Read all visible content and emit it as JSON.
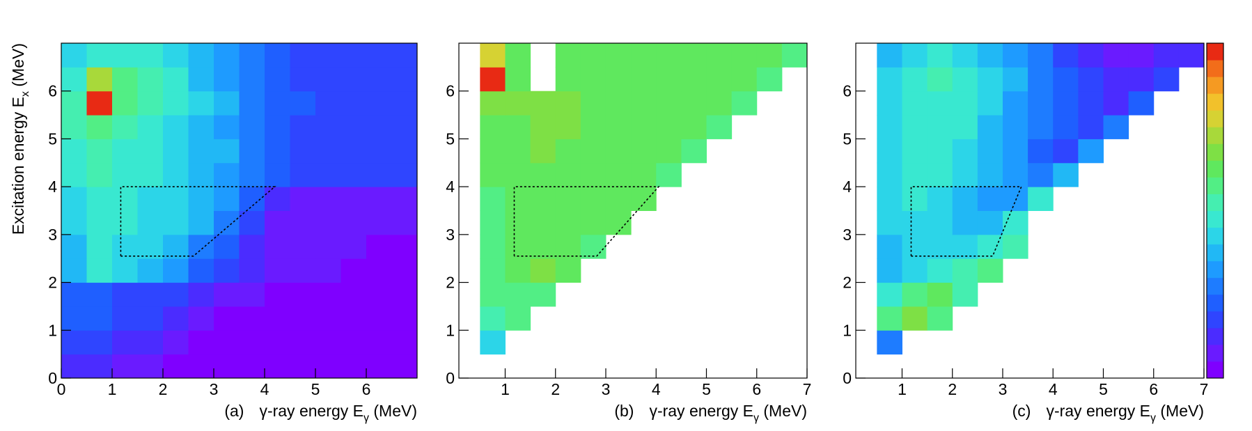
{
  "chart_data": [
    {
      "type": "heatmap",
      "panel_tag": "(a)",
      "xlabel": {
        "text": "γ-ray energy E",
        "sub": "γ",
        "after": " (MeV)"
      },
      "ylabel": {
        "text": "Excitation energy E",
        "sub": "x",
        "after": " (MeV)"
      },
      "xlim": [
        0,
        7
      ],
      "ylim": [
        0,
        7
      ],
      "xticks": [
        0,
        1,
        2,
        3,
        4,
        5,
        6
      ],
      "yticks": [
        0,
        1,
        2,
        3,
        4,
        5,
        6
      ],
      "xbins": [
        0,
        0.5,
        1,
        1.5,
        2,
        2.5,
        3,
        3.5,
        4,
        4.5,
        5,
        5.5,
        6,
        6.5,
        7
      ],
      "ybins": [
        0,
        0.5,
        1,
        1.5,
        2,
        2.5,
        3,
        3.5,
        4,
        4.5,
        5,
        5.5,
        6,
        6.5,
        7
      ],
      "z": [
        [
          3,
          3,
          2,
          2,
          1,
          1,
          1,
          1,
          1,
          1,
          1,
          1,
          1,
          1
        ],
        [
          4,
          4,
          3,
          3,
          2,
          1,
          1,
          1,
          1,
          1,
          1,
          1,
          1,
          1
        ],
        [
          5,
          5,
          4,
          4,
          3,
          2,
          1,
          1,
          1,
          1,
          1,
          1,
          1,
          1
        ],
        [
          5,
          5,
          4,
          4,
          4,
          3,
          2,
          2,
          1,
          1,
          1,
          1,
          1,
          1
        ],
        [
          8,
          10,
          9,
          8,
          7,
          5,
          4,
          3,
          2,
          2,
          2,
          1,
          1,
          1
        ],
        [
          8,
          10,
          9,
          9,
          8,
          6,
          5,
          3,
          2,
          2,
          2,
          2,
          1,
          1
        ],
        [
          9,
          10,
          10,
          9,
          9,
          8,
          6,
          4,
          2,
          2,
          2,
          2,
          2,
          2
        ],
        [
          9,
          10,
          10,
          9,
          9,
          8,
          7,
          5,
          3,
          2,
          2,
          2,
          2,
          2
        ],
        [
          10,
          11,
          10,
          10,
          9,
          8,
          7,
          6,
          5,
          4,
          4,
          4,
          4,
          4
        ],
        [
          10,
          11,
          10,
          10,
          9,
          8,
          8,
          6,
          5,
          4,
          4,
          4,
          4,
          4
        ],
        [
          11,
          12,
          11,
          10,
          9,
          8,
          7,
          6,
          5,
          4,
          4,
          4,
          4,
          4
        ],
        [
          11,
          20,
          12,
          11,
          10,
          9,
          8,
          6,
          5,
          5,
          4,
          4,
          4,
          4
        ],
        [
          10,
          15,
          12,
          11,
          10,
          8,
          7,
          6,
          5,
          4,
          4,
          4,
          4,
          4
        ],
        [
          9,
          10,
          10,
          10,
          9,
          8,
          7,
          6,
          5,
          4,
          4,
          4,
          4,
          4
        ]
      ],
      "gate": {
        "x": [
          1.17,
          1.17,
          4.2,
          2.6,
          1.17
        ],
        "y": [
          2.55,
          4,
          4,
          2.55,
          2.55
        ]
      }
    },
    {
      "type": "heatmap",
      "panel_tag": "(b)",
      "xlabel": {
        "text": "γ-ray energy E",
        "sub": "γ",
        "after": " (MeV)"
      },
      "xlim": [
        0.08,
        7
      ],
      "ylim": [
        0,
        7
      ],
      "xticks": [
        1,
        2,
        3,
        4,
        5,
        6,
        7
      ],
      "yticks": [
        0,
        1,
        2,
        3,
        4,
        5,
        6
      ],
      "xbins": [
        0,
        0.5,
        1,
        1.5,
        2,
        2.5,
        3,
        3.5,
        4,
        4.5,
        5,
        5.5,
        6,
        6.5,
        7
      ],
      "ybins": [
        0,
        0.5,
        1,
        1.5,
        2,
        2.5,
        3,
        3.5,
        4,
        4.5,
        5,
        5.5,
        6,
        6.5,
        7
      ],
      "z": [
        [
          null,
          null,
          null,
          null,
          null,
          null,
          null,
          null,
          null,
          null,
          null,
          null,
          null,
          null
        ],
        [
          null,
          9,
          null,
          null,
          null,
          null,
          null,
          null,
          null,
          null,
          null,
          null,
          null,
          null
        ],
        [
          null,
          11,
          12,
          null,
          null,
          null,
          null,
          null,
          null,
          null,
          null,
          null,
          null,
          null
        ],
        [
          null,
          12,
          12,
          12,
          null,
          null,
          null,
          null,
          null,
          null,
          null,
          null,
          null,
          null
        ],
        [
          null,
          12,
          13,
          14,
          13,
          null,
          null,
          null,
          null,
          null,
          null,
          null,
          null,
          null
        ],
        [
          null,
          12,
          13,
          13,
          13,
          12,
          null,
          null,
          null,
          null,
          null,
          null,
          null,
          null
        ],
        [
          null,
          12,
          13,
          13,
          13,
          13,
          13,
          null,
          null,
          null,
          null,
          null,
          null,
          null
        ],
        [
          null,
          12,
          13,
          13,
          13,
          13,
          13,
          13,
          null,
          null,
          null,
          null,
          null,
          null
        ],
        [
          null,
          13,
          13,
          13,
          13,
          13,
          13,
          13,
          12,
          null,
          null,
          null,
          null,
          null
        ],
        [
          null,
          13,
          13,
          14,
          13,
          13,
          13,
          13,
          13,
          12,
          null,
          null,
          null,
          null
        ],
        [
          null,
          13,
          13,
          14,
          14,
          13,
          13,
          13,
          13,
          13,
          12,
          null,
          null,
          null
        ],
        [
          null,
          14,
          14,
          14,
          14,
          13,
          13,
          13,
          13,
          13,
          13,
          12,
          null,
          null
        ],
        [
          null,
          20,
          13,
          null,
          13,
          13,
          13,
          13,
          13,
          13,
          13,
          13,
          12,
          null
        ],
        [
          null,
          16,
          13,
          null,
          13,
          13,
          13,
          13,
          13,
          13,
          13,
          13,
          13,
          12
        ]
      ],
      "gate": {
        "x": [
          1.18,
          1.18,
          4.05,
          2.82,
          1.18
        ],
        "y": [
          2.55,
          4,
          4,
          2.55,
          2.55
        ]
      }
    },
    {
      "type": "heatmap",
      "panel_tag": "(c)",
      "xlabel": {
        "text": "γ-ray energy E",
        "sub": "γ",
        "after": " (MeV)"
      },
      "xlim": [
        0.08,
        7
      ],
      "ylim": [
        0,
        7
      ],
      "xticks": [
        1,
        2,
        3,
        4,
        5,
        6,
        7
      ],
      "yticks": [
        0,
        1,
        2,
        3,
        4,
        5,
        6
      ],
      "xbins": [
        0,
        0.5,
        1,
        1.5,
        2,
        2.5,
        3,
        3.5,
        4,
        4.5,
        5,
        5.5,
        6,
        6.5,
        7
      ],
      "ybins": [
        0,
        0.5,
        1,
        1.5,
        2,
        2.5,
        3,
        3.5,
        4,
        4.5,
        5,
        5.5,
        6,
        6.5,
        7
      ],
      "z": [
        [
          null,
          null,
          null,
          null,
          null,
          null,
          null,
          null,
          null,
          null,
          null,
          null,
          null,
          null
        ],
        [
          null,
          6,
          null,
          null,
          null,
          null,
          null,
          null,
          null,
          null,
          null,
          null,
          null,
          null
        ],
        [
          null,
          12,
          14,
          12,
          null,
          null,
          null,
          null,
          null,
          null,
          null,
          null,
          null,
          null
        ],
        [
          null,
          10,
          12,
          13,
          11,
          null,
          null,
          null,
          null,
          null,
          null,
          null,
          null,
          null
        ],
        [
          null,
          8,
          9,
          10,
          11,
          12,
          null,
          null,
          null,
          null,
          null,
          null,
          null,
          null
        ],
        [
          null,
          8,
          9,
          9,
          9,
          10,
          11,
          null,
          null,
          null,
          null,
          null,
          null,
          null
        ],
        [
          null,
          9,
          9,
          9,
          8,
          8,
          10,
          null,
          null,
          null,
          null,
          null,
          null,
          null
        ],
        [
          null,
          9,
          10,
          9,
          8,
          7,
          7,
          10,
          null,
          null,
          null,
          null,
          null,
          null
        ],
        [
          null,
          9,
          10,
          10,
          9,
          8,
          7,
          6,
          8,
          null,
          null,
          null,
          null,
          null
        ],
        [
          null,
          9,
          10,
          10,
          9,
          8,
          7,
          5,
          4,
          7,
          null,
          null,
          null,
          null
        ],
        [
          null,
          9,
          10,
          10,
          10,
          8,
          7,
          6,
          5,
          4,
          6,
          null,
          null,
          null
        ],
        [
          null,
          9,
          10,
          10,
          10,
          9,
          7,
          6,
          5,
          4,
          3,
          5,
          null,
          null
        ],
        [
          null,
          9,
          10,
          11,
          10,
          9,
          8,
          6,
          5,
          4,
          3,
          3,
          4,
          null
        ],
        [
          null,
          8,
          9,
          10,
          9,
          8,
          7,
          6,
          4,
          3,
          2,
          2,
          3,
          3
        ]
      ],
      "gate": {
        "x": [
          1.18,
          1.18,
          3.37,
          2.8,
          1.18
        ],
        "y": [
          2.55,
          4,
          4,
          2.55,
          2.55
        ]
      },
      "colorbar": true,
      "colorscale": [
        "#7f00ff",
        "#6a1bff",
        "#4b2cff",
        "#2f45ff",
        "#1f5fff",
        "#1e7cff",
        "#1e9bff",
        "#21b8f5",
        "#2cd5e8",
        "#39e8d0",
        "#45eeb0",
        "#52ee85",
        "#5fe85e",
        "#7ee045",
        "#a8d93a",
        "#d6d233",
        "#f2c12b",
        "#f59a22",
        "#f26d1a",
        "#e82a14"
      ]
    }
  ]
}
